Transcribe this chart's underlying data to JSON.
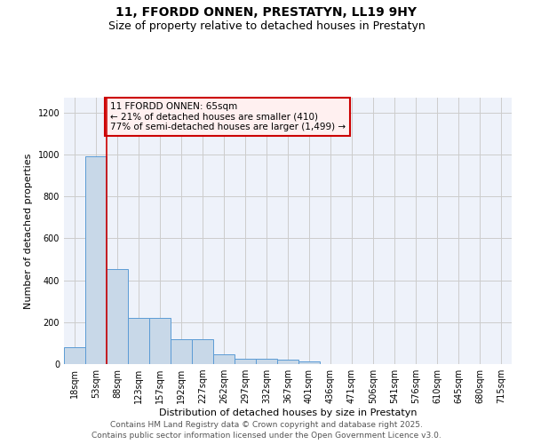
{
  "title_line1": "11, FFORDD ONNEN, PRESTATYN, LL19 9HY",
  "title_line2": "Size of property relative to detached houses in Prestatyn",
  "xlabel": "Distribution of detached houses by size in Prestatyn",
  "ylabel": "Number of detached properties",
  "categories": [
    "18sqm",
    "53sqm",
    "88sqm",
    "123sqm",
    "157sqm",
    "192sqm",
    "227sqm",
    "262sqm",
    "297sqm",
    "332sqm",
    "367sqm",
    "401sqm",
    "436sqm",
    "471sqm",
    "506sqm",
    "541sqm",
    "576sqm",
    "610sqm",
    "645sqm",
    "680sqm",
    "715sqm"
  ],
  "values": [
    80,
    990,
    455,
    220,
    220,
    120,
    120,
    48,
    25,
    25,
    20,
    12,
    0,
    0,
    0,
    0,
    0,
    0,
    0,
    0,
    0
  ],
  "bar_color": "#c8d8e8",
  "bar_edge_color": "#5b9bd5",
  "vline_color": "#cc0000",
  "vline_position": 1.5,
  "annotation_text": "11 FFORDD ONNEN: 65sqm\n← 21% of detached houses are smaller (410)\n77% of semi-detached houses are larger (1,499) →",
  "annotation_box_facecolor": "#fff0f0",
  "annotation_box_edgecolor": "#cc0000",
  "ylim": [
    0,
    1270
  ],
  "yticks": [
    0,
    200,
    400,
    600,
    800,
    1000,
    1200
  ],
  "grid_color": "#cccccc",
  "background_color": "#eef2fa",
  "footer_line1": "Contains HM Land Registry data © Crown copyright and database right 2025.",
  "footer_line2": "Contains public sector information licensed under the Open Government Licence v3.0.",
  "title_fontsize": 10,
  "subtitle_fontsize": 9,
  "axis_label_fontsize": 8,
  "tick_fontsize": 7,
  "annotation_fontsize": 7.5,
  "footer_fontsize": 6.5
}
